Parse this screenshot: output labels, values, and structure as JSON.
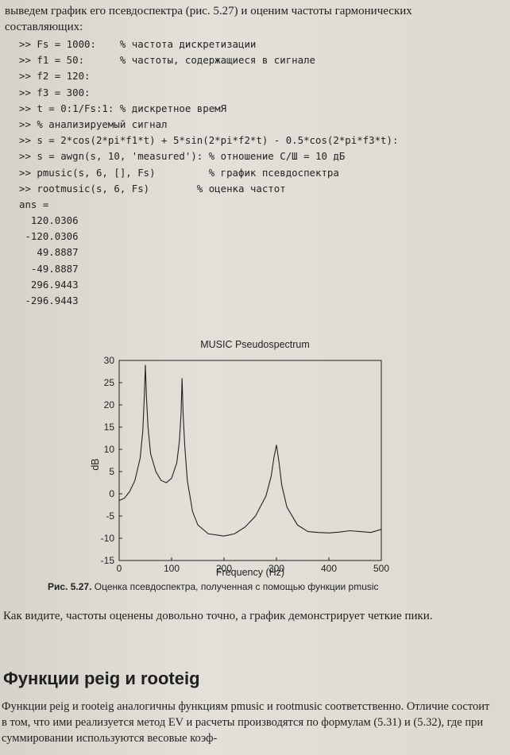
{
  "intro_text": "выведем график его псевдоспектра (рис. 5.27) и оценим частоты гармонических составляющих:",
  "code_lines": [
    ">> Fs = 1000:    % частота дискретизации",
    ">> f1 = 50:      % частоты, содержащиеся в сигнале",
    ">> f2 = 120:",
    ">> f3 = 300:",
    ">> t = 0:1/Fs:1: % дискретное времЯ",
    ">> % анализируемый сигнал",
    ">> s = 2*cos(2*pi*f1*t) + 5*sin(2*pi*f2*t) - 0.5*cos(2*pi*f3*t):",
    ">> s = awgn(s, 10, 'measured'): % отношение С/Ш = 10 дБ",
    ">> pmusic(s, 6, [], Fs)         % график псевдоспектра",
    ">> rootmusic(s, 6, Fs)        % оценка частот",
    "ans =",
    "  120.0306",
    " -120.0306",
    "   49.8887",
    "  -49.8887",
    "  296.9443",
    " -296.9443"
  ],
  "chart_data": {
    "type": "line",
    "title": "MUSIC Pseudospectrum",
    "xlabel": "Frequency (Hz)",
    "ylabel": "dB",
    "xlim": [
      0,
      500
    ],
    "ylim": [
      -15,
      30
    ],
    "xticks": [
      0,
      100,
      200,
      300,
      400,
      500
    ],
    "yticks": [
      -15,
      -10,
      -5,
      0,
      5,
      10,
      15,
      20,
      25,
      30
    ],
    "grid": false,
    "series": [
      {
        "x": [
          0,
          10,
          20,
          30,
          40,
          45,
          48,
          50,
          52,
          55,
          60,
          70,
          80,
          90,
          100,
          110,
          115,
          118,
          120,
          122,
          125,
          130,
          140,
          150,
          170,
          200,
          220,
          240,
          260,
          280,
          290,
          295,
          300,
          305,
          310,
          320,
          340,
          360,
          380,
          400,
          420,
          440,
          460,
          480,
          500
        ],
        "y": [
          -1.5,
          -1,
          0.5,
          3,
          8,
          14,
          22,
          29,
          22,
          15,
          9,
          5,
          3,
          2.5,
          3.5,
          7,
          12,
          18,
          26,
          18,
          11,
          3,
          -4,
          -7,
          -9,
          -9.5,
          -9,
          -7.5,
          -5,
          -0.5,
          4,
          8,
          11,
          7,
          2,
          -3,
          -7,
          -8.5,
          -8.7,
          -8.8,
          -8.6,
          -8.3,
          -8.5,
          -8.7,
          -8
        ]
      }
    ]
  },
  "caption": {
    "number": "Рис. 5.27.",
    "text": "Оценка псевдоспектра, полученная с помощью функции pmusic"
  },
  "after_text": "Как видите, частоты оценены довольно точно, а график демонстрирует четкие пики.",
  "heading": "Функции peig и rooteig",
  "body_text": "Функции peig и rooteig аналогичны функциям pmusic и rootmusic соответственно. Отличие состоит в том, что ими реализуется метод EV и расчеты производятся по формулам (5.31) и (5.32), где при суммировании используются весовые коэф-"
}
